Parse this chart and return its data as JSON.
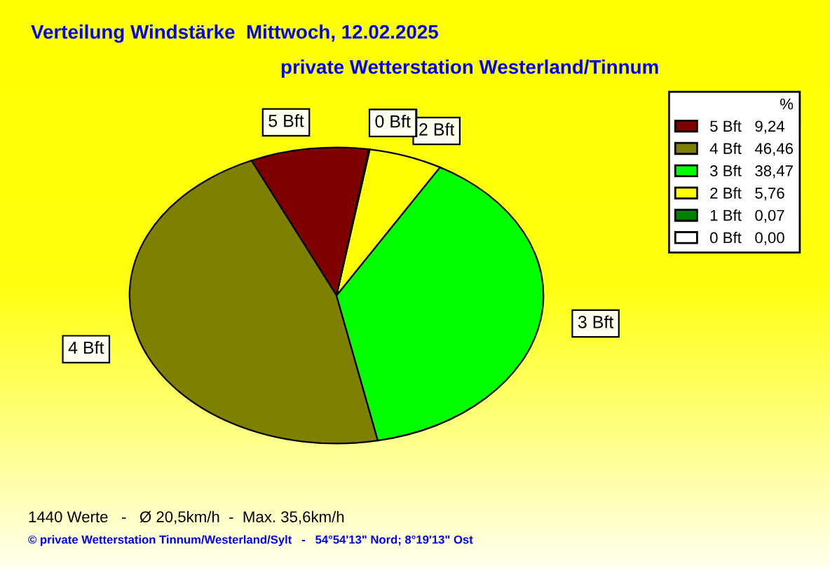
{
  "chart_data": {
    "type": "pie",
    "title": "Verteilung Windstärke  Mittwoch, 12.02.2025",
    "subtitle": "private Wetterstation Westerland/Tinnum",
    "categories": [
      "5 Bft",
      "4 Bft",
      "3 Bft",
      "2 Bft",
      "1 Bft",
      "0 Bft"
    ],
    "values": [
      9.24,
      46.46,
      38.47,
      5.76,
      0.07,
      0.0
    ],
    "value_labels": [
      "9,24",
      "46,46",
      "38,47",
      "5,76",
      "0,07",
      "0,00"
    ],
    "colors": [
      "#800000",
      "#808000",
      "#00ff00",
      "#ffff00",
      "#008000",
      "#ffffff"
    ],
    "legend_title": "%",
    "legend": "right",
    "annotations": [
      "1440 Werte   -   Ø 20,5km/h  -  Max. 35,6km/h",
      "© private Wetterstation Tinnum/Westerland/Sylt   -   54°54'13\" Nord; 8°19'13\" Ost"
    ]
  }
}
